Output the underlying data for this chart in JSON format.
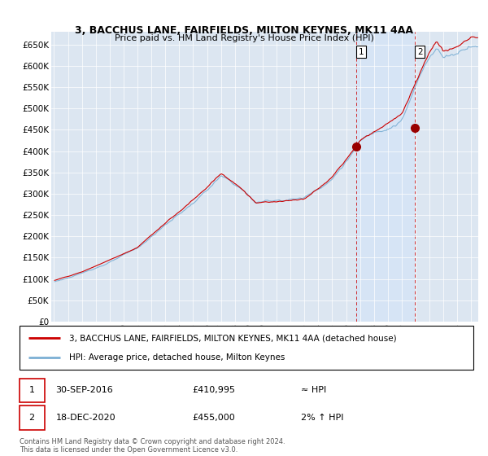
{
  "title": "3, BACCHUS LANE, FAIRFIELDS, MILTON KEYNES, MK11 4AA",
  "subtitle": "Price paid vs. HM Land Registry's House Price Index (HPI)",
  "legend_line1": "3, BACCHUS LANE, FAIRFIELDS, MILTON KEYNES, MK11 4AA (detached house)",
  "legend_line2": "HPI: Average price, detached house, Milton Keynes",
  "annotation1_num": "1",
  "annotation1_date": "30-SEP-2016",
  "annotation1_price": "£410,995",
  "annotation1_hpi": "≈ HPI",
  "annotation2_num": "2",
  "annotation2_date": "18-DEC-2020",
  "annotation2_price": "£455,000",
  "annotation2_hpi": "2% ↑ HPI",
  "footer": "Contains HM Land Registry data © Crown copyright and database right 2024.\nThis data is licensed under the Open Government Licence v3.0.",
  "hpi_color": "#7bafd4",
  "price_color": "#cc0000",
  "highlight_color": "#d6e4f5",
  "bg_color": "#dce6f1",
  "sale1_year": 2016.75,
  "sale2_year": 2020.96,
  "ylim": [
    0,
    680000
  ],
  "yticks": [
    0,
    50000,
    100000,
    150000,
    200000,
    250000,
    300000,
    350000,
    400000,
    450000,
    500000,
    550000,
    600000,
    650000
  ],
  "xlim_left": 1994.8,
  "xlim_right": 2025.5
}
